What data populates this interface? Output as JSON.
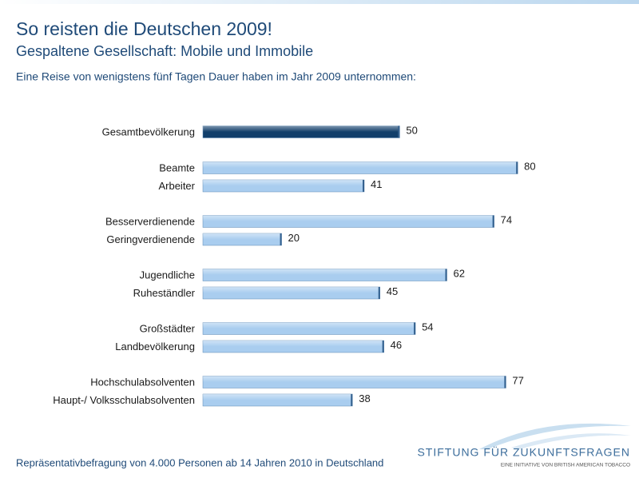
{
  "chart_data": {
    "type": "hbar",
    "title": "So reisten die Deutschen 2009!",
    "subtitle": "Gespaltene Gesellschaft: Mobile und Immobile",
    "description": "Eine Reise von wenigstens fünf Tagen Dauer haben im Jahr 2009 unternommen:",
    "source": "Repräsentativbefragung von 4.000 Personen ab 14 Jahren 2010 in Deutschland",
    "categories": [
      "Gesamtbevölkerung",
      "Beamte",
      "Arbeiter",
      "Besserverdienende",
      "Geringverdienende",
      "Jugendliche",
      "Ruheständler",
      "Großstädter",
      "Landbevölkerung",
      "Hochschulabsolventen",
      "Haupt-/ Volksschulabsolventen"
    ],
    "values": [
      50,
      80,
      41,
      74,
      20,
      62,
      45,
      54,
      46,
      77,
      38
    ],
    "colors": [
      "#123f6b",
      "#a9cdef",
      "#a9cdef",
      "#a9cdef",
      "#a9cdef",
      "#a9cdef",
      "#a9cdef",
      "#a9cdef",
      "#a9cdef",
      "#a9cdef",
      "#a9cdef"
    ],
    "xlim": [
      0,
      110
    ]
  },
  "logo": {
    "name": "STIFTUNG FÜR ZUKUNFTSFRAGEN",
    "tagline": "EINE INITIATIVE VON BRITISH AMERICAN TOBACCO"
  }
}
